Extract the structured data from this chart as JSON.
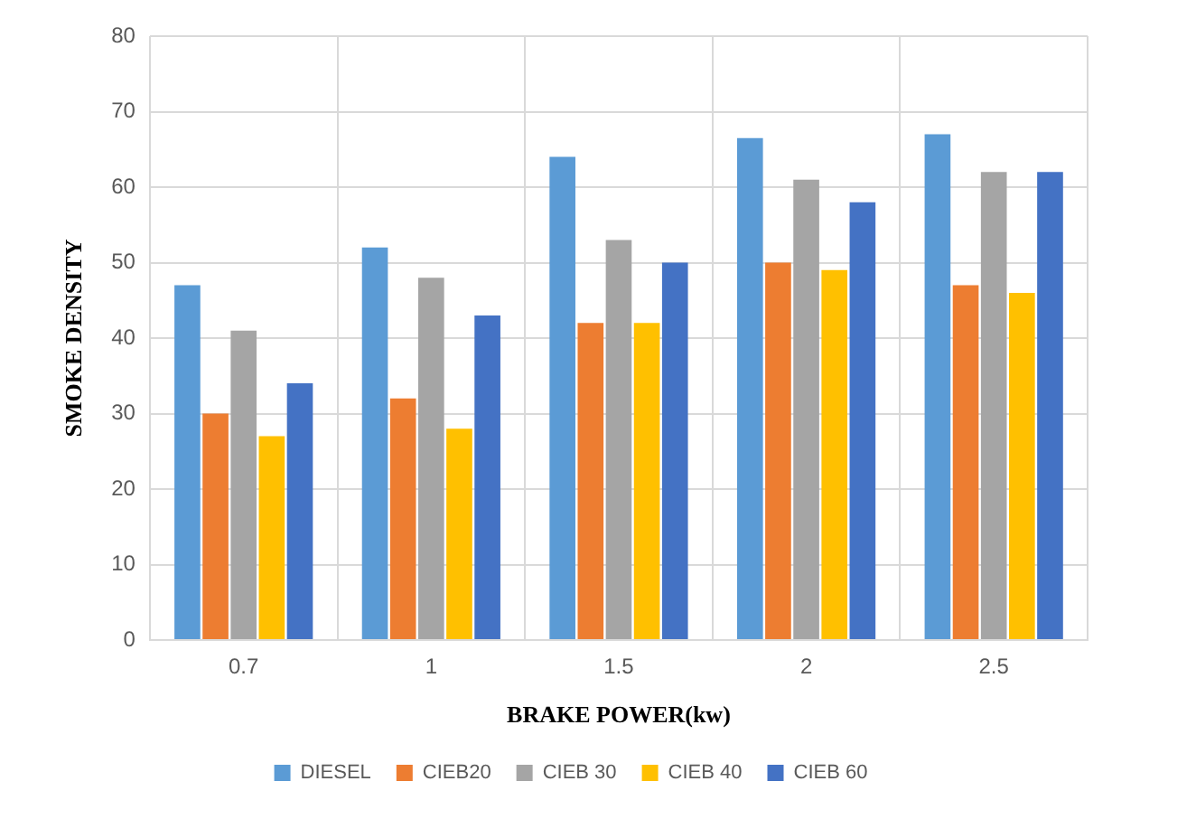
{
  "chart_data": {
    "type": "bar",
    "xlabel": "BRAKE POWER(kw)",
    "ylabel": "SMOKE DENSITY",
    "categories": [
      "0.7",
      "1",
      "1.5",
      "2",
      "2.5"
    ],
    "series": [
      {
        "name": "DIESEL",
        "color": "#5b9bd5",
        "values": [
          47,
          52,
          64,
          66.5,
          67
        ]
      },
      {
        "name": "CIEB20",
        "color": "#ed7d31",
        "values": [
          30,
          32,
          42,
          50,
          47
        ]
      },
      {
        "name": "CIEB 30",
        "color": "#a5a5a5",
        "values": [
          41,
          48,
          53,
          61,
          62
        ]
      },
      {
        "name": "CIEB 40",
        "color": "#ffc000",
        "values": [
          27,
          28,
          42,
          49,
          46
        ]
      },
      {
        "name": "CIEB 60",
        "color": "#4472c4",
        "values": [
          34,
          43,
          50,
          58,
          62
        ]
      }
    ],
    "ylim": [
      0,
      80
    ],
    "yticks": [
      0,
      10,
      20,
      30,
      40,
      50,
      60,
      70,
      80
    ],
    "grid": true,
    "legend": "bottom"
  }
}
